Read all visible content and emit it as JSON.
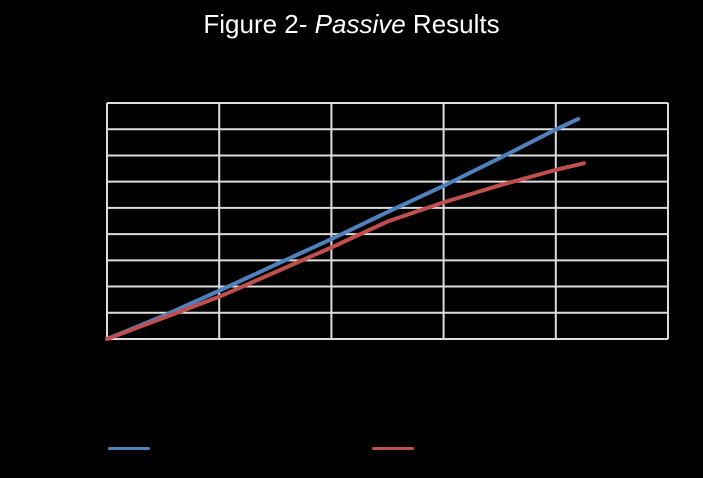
{
  "title": {
    "prefix": "Figure 2- ",
    "italic_word": "Passive",
    "suffix": " Results"
  },
  "colors": {
    "background": "#000000",
    "title_text": "#ffffff",
    "gridline": "#dcdcdc",
    "series_blue": "#4f81bd",
    "series_red": "#c0504d"
  },
  "chart_data": {
    "type": "line",
    "title": "Figure 2- Passive Results",
    "xlabel": "",
    "ylabel": "",
    "axis_tick_labels_visible": false,
    "legend_labels_visible": false,
    "note": "axis tick labels and legend text are not visible (black on black); values estimated in gridline units",
    "xlim": [
      0,
      5
    ],
    "ylim": [
      0,
      9
    ],
    "grid": {
      "visible": true,
      "x_step": 1,
      "y_step": 1
    },
    "legend_position": "bottom",
    "series": [
      {
        "id": "blue-line",
        "color": "#4f81bd",
        "x": [
          0,
          0.5,
          1,
          1.5,
          2,
          2.5,
          3,
          3.5,
          4,
          4.2
        ],
        "y": [
          0,
          0.88,
          1.84,
          2.83,
          3.81,
          4.84,
          5.84,
          6.9,
          7.99,
          8.39
        ]
      },
      {
        "id": "red-line",
        "color": "#c0504d",
        "x": [
          0,
          0.5,
          1,
          1.5,
          2,
          2.5,
          3,
          3.5,
          4,
          4.25
        ],
        "y": [
          0,
          0.8,
          1.61,
          2.55,
          3.49,
          4.48,
          5.21,
          5.86,
          6.45,
          6.7
        ]
      }
    ]
  }
}
